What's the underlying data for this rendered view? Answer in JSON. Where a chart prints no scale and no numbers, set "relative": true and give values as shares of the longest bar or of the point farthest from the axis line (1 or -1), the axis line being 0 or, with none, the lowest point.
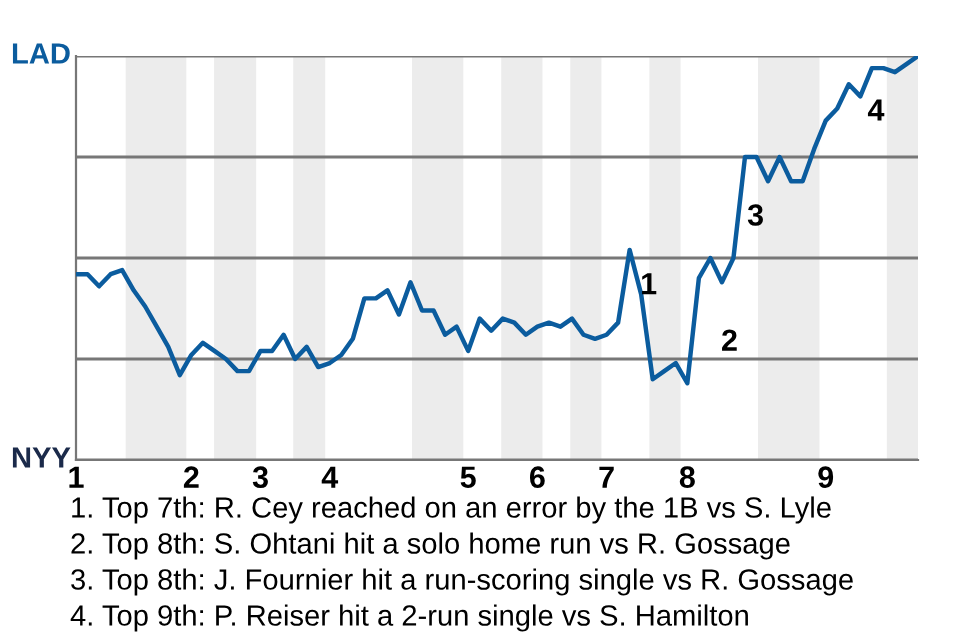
{
  "chart_data": {
    "type": "line",
    "relative": true,
    "categories": [
      "1",
      null,
      null,
      null,
      null,
      null,
      null,
      null,
      null,
      null,
      "2",
      null,
      null,
      null,
      null,
      null,
      "3",
      null,
      null,
      null,
      null,
      null,
      "4",
      null,
      null,
      null,
      null,
      null,
      null,
      null,
      null,
      null,
      null,
      null,
      "5",
      null,
      null,
      null,
      null,
      null,
      "6",
      null,
      null,
      null,
      null,
      null,
      "7",
      null,
      null,
      null,
      null,
      null,
      null,
      "8",
      null,
      null,
      null,
      null,
      null,
      null,
      null,
      null,
      null,
      null,
      null,
      "9",
      null,
      null,
      null,
      null,
      null,
      null,
      null,
      null
    ],
    "series": [
      {
        "color": "#0b5c9e",
        "values": [
          0.46,
          0.46,
          0.43,
          0.46,
          0.47,
          0.42,
          0.38,
          0.33,
          0.28,
          0.21,
          0.26,
          0.29,
          0.27,
          0.25,
          0.22,
          0.22,
          0.27,
          0.27,
          0.31,
          0.25,
          0.28,
          0.23,
          0.24,
          0.26,
          0.3,
          0.4,
          0.4,
          0.42,
          0.36,
          0.44,
          0.37,
          0.37,
          0.31,
          0.33,
          0.27,
          0.35,
          0.32,
          0.35,
          0.34,
          0.31,
          0.33,
          0.34,
          0.33,
          0.35,
          0.31,
          0.3,
          0.31,
          0.34,
          0.52,
          0.41,
          0.2,
          0.22,
          0.24,
          0.19,
          0.45,
          0.5,
          0.44,
          0.5,
          0.75,
          0.75,
          0.69,
          0.75,
          0.69,
          0.69,
          0.77,
          0.84,
          0.87,
          0.93,
          0.9,
          0.97,
          0.97,
          0.96,
          0.98,
          1
        ],
        "name": null
      }
    ],
    "grid": "y",
    "annotations": [
      "LAD",
      "NYY",
      "1",
      "2",
      "3",
      "4",
      "1. Top 7th: R. Cey reached on an error by the 1B vs S. Lyle",
      "2. Top 8th: S. Ohtani hit a solo home run vs R. Gossage",
      "3. Top 8th: J. Fournier hit a run-scoring single vs R. Gossage",
      "4. Top 9th: P. Reiser hit a 2-run single vs S. Hamilton"
    ]
  }
}
